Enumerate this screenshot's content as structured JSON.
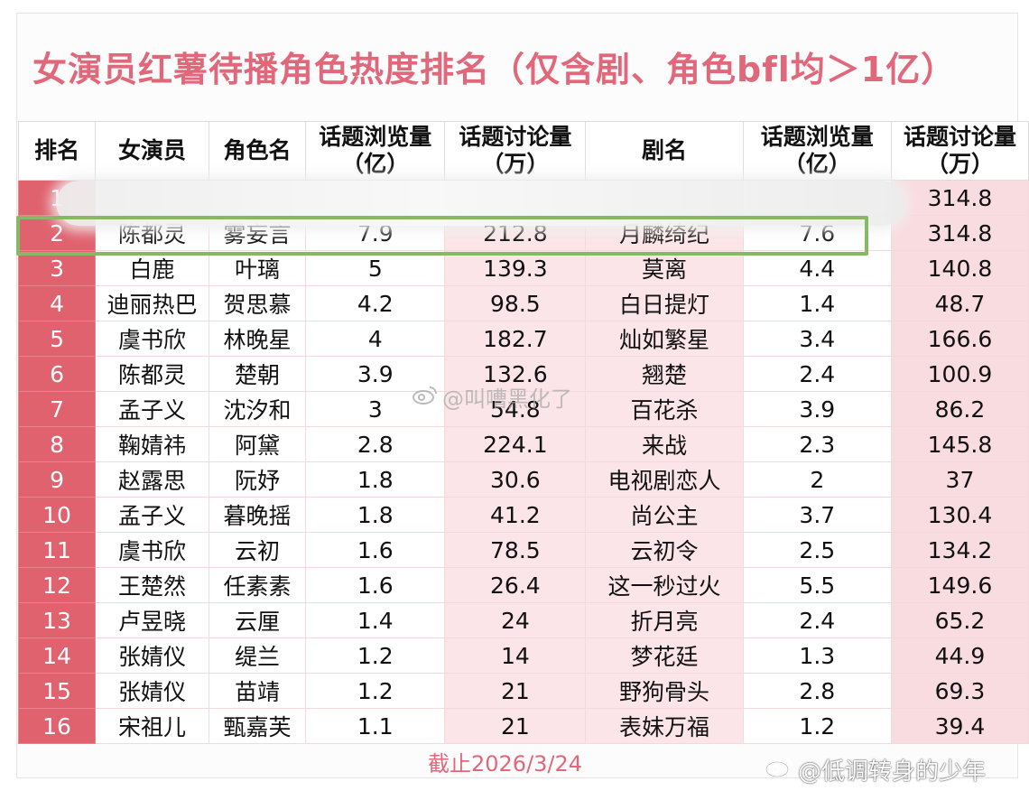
{
  "title": "女演员红薯待播角色热度排名（仅含剧、角色bfl均＞1亿）",
  "headers": {
    "rank": "排名",
    "actress": "女演员",
    "role": "角色名",
    "role_views": "话题浏览量（亿）",
    "role_discussion": "话题讨论量（万）",
    "drama": "剧名",
    "drama_views": "话题浏览量（亿）",
    "drama_discussion": "话题讨论量（万）"
  },
  "rows": [
    {
      "rank": "1",
      "actress": "",
      "role": "",
      "role_views": "",
      "role_discussion": "",
      "drama": "",
      "drama_views": "",
      "drama_discussion": "314.8"
    },
    {
      "rank": "2",
      "actress": "陈都灵",
      "role": "雾妄言",
      "role_views": "7.9",
      "role_discussion": "212.8",
      "drama": "月麟绮纪",
      "drama_views": "7.6",
      "drama_discussion": "314.8"
    },
    {
      "rank": "3",
      "actress": "白鹿",
      "role": "叶璃",
      "role_views": "5",
      "role_discussion": "139.3",
      "drama": "莫离",
      "drama_views": "4.4",
      "drama_discussion": "140.8"
    },
    {
      "rank": "4",
      "actress": "迪丽热巴",
      "role": "贺思慕",
      "role_views": "4.2",
      "role_discussion": "98.5",
      "drama": "白日提灯",
      "drama_views": "1.4",
      "drama_discussion": "48.7"
    },
    {
      "rank": "5",
      "actress": "虞书欣",
      "role": "林晚星",
      "role_views": "4",
      "role_discussion": "182.7",
      "drama": "灿如繁星",
      "drama_views": "3.4",
      "drama_discussion": "166.6"
    },
    {
      "rank": "6",
      "actress": "陈都灵",
      "role": "楚朝",
      "role_views": "3.9",
      "role_discussion": "132.6",
      "drama": "翘楚",
      "drama_views": "2.4",
      "drama_discussion": "100.9"
    },
    {
      "rank": "7",
      "actress": "孟子义",
      "role": "沈汐和",
      "role_views": "3",
      "role_discussion": "54.8",
      "drama": "百花杀",
      "drama_views": "3.9",
      "drama_discussion": "86.2"
    },
    {
      "rank": "8",
      "actress": "鞠婧祎",
      "role": "阿黛",
      "role_views": "2.8",
      "role_discussion": "224.1",
      "drama": "来战",
      "drama_views": "2.3",
      "drama_discussion": "145.8"
    },
    {
      "rank": "9",
      "actress": "赵露思",
      "role": "阮妤",
      "role_views": "1.8",
      "role_discussion": "30.6",
      "drama": "电视剧恋人",
      "drama_views": "2",
      "drama_discussion": "37"
    },
    {
      "rank": "10",
      "actress": "孟子义",
      "role": "暮晚摇",
      "role_views": "1.8",
      "role_discussion": "41.2",
      "drama": "尚公主",
      "drama_views": "3.7",
      "drama_discussion": "130.4"
    },
    {
      "rank": "11",
      "actress": "虞书欣",
      "role": "云初",
      "role_views": "1.6",
      "role_discussion": "78.5",
      "drama": "云初令",
      "drama_views": "2.5",
      "drama_discussion": "134.2"
    },
    {
      "rank": "12",
      "actress": "王楚然",
      "role": "任素素",
      "role_views": "1.6",
      "role_discussion": "26.4",
      "drama": "这一秒过火",
      "drama_views": "5.5",
      "drama_discussion": "149.6"
    },
    {
      "rank": "13",
      "actress": "卢昱晓",
      "role": "云厘",
      "role_views": "1.4",
      "role_discussion": "24",
      "drama": "折月亮",
      "drama_views": "2.4",
      "drama_discussion": "65.2"
    },
    {
      "rank": "14",
      "actress": "张婧仪",
      "role": "缇兰",
      "role_views": "1.2",
      "role_discussion": "14",
      "drama": "梦花廷",
      "drama_views": "1.3",
      "drama_discussion": "44.9"
    },
    {
      "rank": "15",
      "actress": "张婧仪",
      "role": "苗靖",
      "role_views": "1.2",
      "role_discussion": "21",
      "drama": "野狗骨头",
      "drama_views": "2.8",
      "drama_discussion": "69.3"
    },
    {
      "rank": "16",
      "actress": "宋祖儿",
      "role": "甄嘉芙",
      "role_views": "1.1",
      "role_discussion": "21",
      "drama": "表妹万福",
      "drama_views": "1.2",
      "drama_discussion": "39.4"
    }
  ],
  "footer_date": "截止2026/3/24",
  "watermarks": {
    "center": "@叫嘈黑化了",
    "corner": "@低调转身的少年"
  },
  "colors": {
    "title": "#e0687a",
    "rank_column": "#e0626f",
    "pink_cell": "#fbe5e8",
    "highlight_box": "#86b865"
  },
  "icons": [
    "weibo-icon"
  ]
}
